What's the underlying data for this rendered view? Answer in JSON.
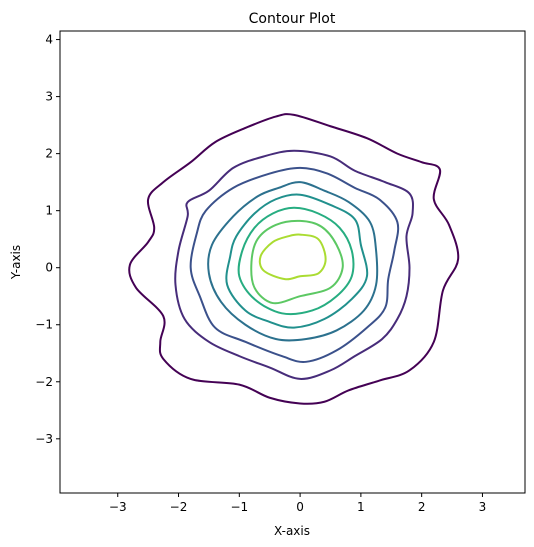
{
  "chart_data": {
    "type": "contour",
    "title": "Contour Plot",
    "xlabel": "X-axis",
    "ylabel": "Y-axis",
    "xlim": [
      -3.95,
      3.7
    ],
    "ylim": [
      -3.95,
      4.15
    ],
    "xticks": [
      {
        "value": -3,
        "label": "−3"
      },
      {
        "value": -2,
        "label": "−2"
      },
      {
        "value": -1,
        "label": "−1"
      },
      {
        "value": 0,
        "label": "0"
      },
      {
        "value": 1,
        "label": "1"
      },
      {
        "value": 2,
        "label": "2"
      },
      {
        "value": 3,
        "label": "3"
      }
    ],
    "yticks": [
      {
        "value": -3,
        "label": "−3"
      },
      {
        "value": -2,
        "label": "−2"
      },
      {
        "value": -1,
        "label": "−1"
      },
      {
        "value": 0,
        "label": "0"
      },
      {
        "value": 1,
        "label": "1"
      },
      {
        "value": 2,
        "label": "2"
      },
      {
        "value": 3,
        "label": "3"
      },
      {
        "value": 4,
        "label": "4"
      }
    ],
    "grid": false,
    "legend": "none",
    "colormap": "viridis",
    "levels": [
      {
        "color": "#440154",
        "points": [
          [
            -0.1,
            2.68
          ],
          [
            0.5,
            2.48
          ],
          [
            1.1,
            2.27
          ],
          [
            1.6,
            2.0
          ],
          [
            2.0,
            1.85
          ],
          [
            2.3,
            1.72
          ],
          [
            2.2,
            1.2
          ],
          [
            2.45,
            0.75
          ],
          [
            2.6,
            0.15
          ],
          [
            2.35,
            -0.4
          ],
          [
            2.2,
            -1.3
          ],
          [
            1.8,
            -1.8
          ],
          [
            1.3,
            -1.98
          ],
          [
            0.8,
            -2.15
          ],
          [
            0.4,
            -2.35
          ],
          [
            0.0,
            -2.38
          ],
          [
            -0.5,
            -2.28
          ],
          [
            -1.0,
            -2.05
          ],
          [
            -1.8,
            -1.95
          ],
          [
            -2.25,
            -1.6
          ],
          [
            -2.3,
            -1.3
          ],
          [
            -2.25,
            -0.85
          ],
          [
            -2.7,
            -0.35
          ],
          [
            -2.8,
            0.05
          ],
          [
            -2.5,
            0.45
          ],
          [
            -2.4,
            0.7
          ],
          [
            -2.5,
            1.2
          ],
          [
            -2.25,
            1.5
          ],
          [
            -1.8,
            1.85
          ],
          [
            -1.4,
            2.2
          ],
          [
            -0.9,
            2.45
          ],
          [
            -0.4,
            2.65
          ]
        ]
      },
      {
        "color": "#472c7a",
        "points": [
          [
            -0.1,
            2.05
          ],
          [
            0.5,
            1.95
          ],
          [
            0.9,
            1.7
          ],
          [
            1.4,
            1.5
          ],
          [
            1.8,
            1.3
          ],
          [
            1.85,
            0.95
          ],
          [
            1.75,
            0.55
          ],
          [
            1.8,
            0.0
          ],
          [
            1.75,
            -0.5
          ],
          [
            1.6,
            -0.9
          ],
          [
            1.35,
            -1.25
          ],
          [
            0.9,
            -1.55
          ],
          [
            0.5,
            -1.8
          ],
          [
            0.0,
            -1.95
          ],
          [
            -0.5,
            -1.75
          ],
          [
            -1.0,
            -1.55
          ],
          [
            -1.5,
            -1.3
          ],
          [
            -1.9,
            -0.9
          ],
          [
            -2.05,
            -0.3
          ],
          [
            -2.0,
            0.3
          ],
          [
            -1.85,
            0.9
          ],
          [
            -1.85,
            1.15
          ],
          [
            -1.5,
            1.35
          ],
          [
            -1.1,
            1.75
          ],
          [
            -0.6,
            1.95
          ]
        ]
      },
      {
        "color": "#3b518b",
        "points": [
          [
            0.0,
            1.75
          ],
          [
            0.45,
            1.65
          ],
          [
            0.9,
            1.4
          ],
          [
            1.3,
            1.2
          ],
          [
            1.6,
            0.8
          ],
          [
            1.55,
            0.3
          ],
          [
            1.45,
            -0.2
          ],
          [
            1.4,
            -0.7
          ],
          [
            1.1,
            -1.05
          ],
          [
            0.6,
            -1.45
          ],
          [
            0.1,
            -1.65
          ],
          [
            -0.3,
            -1.55
          ],
          [
            -0.9,
            -1.3
          ],
          [
            -1.4,
            -1.05
          ],
          [
            -1.65,
            -0.5
          ],
          [
            -1.8,
            0.0
          ],
          [
            -1.7,
            0.6
          ],
          [
            -1.55,
            1.0
          ],
          [
            -1.1,
            1.4
          ],
          [
            -0.5,
            1.65
          ]
        ]
      },
      {
        "color": "#2c718e",
        "points": [
          [
            0.0,
            1.5
          ],
          [
            0.4,
            1.35
          ],
          [
            0.8,
            1.15
          ],
          [
            1.15,
            0.8
          ],
          [
            1.25,
            0.3
          ],
          [
            1.25,
            -0.3
          ],
          [
            1.05,
            -0.75
          ],
          [
            0.6,
            -1.1
          ],
          [
            0.1,
            -1.25
          ],
          [
            -0.4,
            -1.25
          ],
          [
            -0.9,
            -1.0
          ],
          [
            -1.3,
            -0.6
          ],
          [
            -1.5,
            -0.1
          ],
          [
            -1.45,
            0.4
          ],
          [
            -1.1,
            0.9
          ],
          [
            -0.7,
            1.25
          ],
          [
            -0.35,
            1.4
          ]
        ]
      },
      {
        "color": "#21908d",
        "points": [
          [
            0.0,
            1.28
          ],
          [
            0.5,
            1.1
          ],
          [
            0.9,
            0.85
          ],
          [
            1.0,
            0.4
          ],
          [
            1.1,
            -0.15
          ],
          [
            0.85,
            -0.55
          ],
          [
            0.4,
            -0.9
          ],
          [
            -0.1,
            -1.05
          ],
          [
            -0.5,
            -0.95
          ],
          [
            -0.9,
            -0.75
          ],
          [
            -1.2,
            -0.3
          ],
          [
            -1.15,
            0.2
          ],
          [
            -1.05,
            0.55
          ],
          [
            -0.75,
            0.95
          ],
          [
            -0.4,
            1.2
          ]
        ]
      },
      {
        "color": "#27ad81",
        "points": [
          [
            -0.1,
            1.05
          ],
          [
            0.3,
            0.95
          ],
          [
            0.65,
            0.7
          ],
          [
            0.85,
            0.3
          ],
          [
            0.85,
            -0.15
          ],
          [
            0.6,
            -0.5
          ],
          [
            0.2,
            -0.75
          ],
          [
            -0.3,
            -0.8
          ],
          [
            -0.75,
            -0.55
          ],
          [
            -1.0,
            -0.15
          ],
          [
            -0.95,
            0.3
          ],
          [
            -0.75,
            0.7
          ],
          [
            -0.45,
            0.95
          ]
        ]
      },
      {
        "color": "#5cc863",
        "points": [
          [
            0.0,
            0.82
          ],
          [
            0.35,
            0.72
          ],
          [
            0.6,
            0.4
          ],
          [
            0.7,
            0.0
          ],
          [
            0.5,
            -0.35
          ],
          [
            0.0,
            -0.5
          ],
          [
            -0.45,
            -0.62
          ],
          [
            -0.75,
            -0.35
          ],
          [
            -0.8,
            0.1
          ],
          [
            -0.7,
            0.5
          ],
          [
            -0.4,
            0.75
          ]
        ]
      },
      {
        "color": "#aadc32",
        "points": [
          [
            0.0,
            0.58
          ],
          [
            0.3,
            0.5
          ],
          [
            0.42,
            0.15
          ],
          [
            0.3,
            -0.1
          ],
          [
            0.0,
            -0.15
          ],
          [
            -0.25,
            -0.2
          ],
          [
            -0.6,
            -0.05
          ],
          [
            -0.65,
            0.2
          ],
          [
            -0.45,
            0.45
          ],
          [
            -0.2,
            0.55
          ]
        ]
      }
    ]
  }
}
